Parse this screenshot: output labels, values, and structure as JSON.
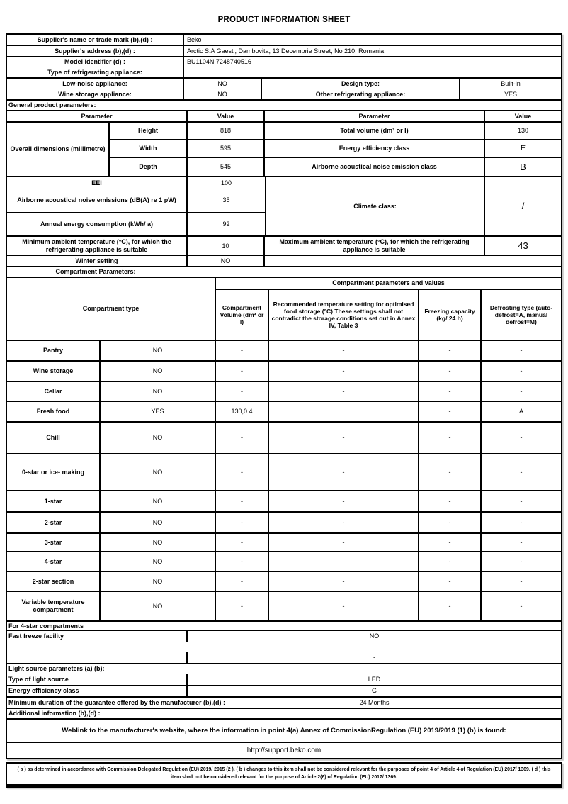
{
  "title": "PRODUCT INFORMATION SHEET",
  "supplier": {
    "name_label": "Supplier's name or trade mark (b),(d) :",
    "name_value": "Beko",
    "address_label": "Supplier's address (b),(d) :",
    "address_value": "Arctic S.A Gaesti, Dambovita, 13 Decembrie Street, No 210, Romania",
    "model_label": "Model identifier (d) :",
    "model_value": "BU1104N 7248740516",
    "type_label": "Type of refrigerating appliance:",
    "type_value": ""
  },
  "flags": {
    "low_noise_label": "Low-noise appliance:",
    "low_noise_value": "NO",
    "design_type_label": "Design type:",
    "design_type_value": "Built-in",
    "wine_storage_label": "Wine storage appliance:",
    "wine_storage_value": "NO",
    "other_label": "Other refrigerating appliance:",
    "other_value": "YES"
  },
  "general": {
    "section_label": "General product parameters:",
    "header": {
      "param": "Parameter",
      "value": "Value"
    },
    "dimensions": {
      "label": "Overall dimensions (millimetre)",
      "rows": [
        {
          "name": "Height",
          "value": "818"
        },
        {
          "name": "Width",
          "value": "595"
        },
        {
          "name": "Depth",
          "value": "545"
        }
      ]
    },
    "right_params": [
      {
        "label": "Total volume (dm³ or l)",
        "value": "130"
      },
      {
        "label": "Energy efficiency class",
        "value": "E"
      },
      {
        "label": "Airborne acoustical noise emission class",
        "value": "B"
      }
    ],
    "eei": {
      "label": "EEI",
      "value": "100"
    },
    "noise": {
      "label": "Airborne acoustical noise emissions (dB(A) re 1 pW)",
      "value": "35"
    },
    "energy": {
      "label": "Annual energy consumption (kWh/ a)",
      "value": "92"
    },
    "climate": {
      "label": "Climate class:",
      "value": "/"
    },
    "min_temp": {
      "label": "Minimum ambient temperature (°C), for which the refrigerating appliance is suitable",
      "value": "10"
    },
    "max_temp": {
      "label": "Maximum ambient temperature (°C), for which the refrigerating appliance is suitable",
      "value": "43"
    },
    "winter": {
      "label": "Winter setting",
      "value": "NO"
    }
  },
  "compartments": {
    "section_label": "Compartment Parameters:",
    "group_header": "Compartment parameters and values",
    "type_header": "Compartment type",
    "col_headers": [
      "Compartment Volume (dm³ or l)",
      "Recommended temperature setting for optimised food storage (°C) These settings shall not contradict the storage conditions set out in Annex IV, Table 3",
      "Freezing capacity (kg/ 24 h)",
      "Defrosting type (auto-defrost=A, manual defrost=M)"
    ],
    "rows": [
      {
        "type": "Pantry",
        "present": "NO",
        "volume": "-",
        "temp": "-",
        "freezing": "-",
        "defrost": "-"
      },
      {
        "type": "Wine storage",
        "present": "NO",
        "volume": "-",
        "temp": "-",
        "freezing": "-",
        "defrost": "-"
      },
      {
        "type": "Cellar",
        "present": "NO",
        "volume": "-",
        "temp": "-",
        "freezing": "-",
        "defrost": "-"
      },
      {
        "type": "Fresh food",
        "present": "YES",
        "volume": "130,0 4",
        "temp": "",
        "freezing": "-",
        "defrost": "A"
      },
      {
        "type": "Chill",
        "present": "NO",
        "volume": "-",
        "temp": "-",
        "freezing": "-",
        "defrost": "-"
      },
      {
        "type": "0-star or ice- making",
        "present": "NO",
        "volume": "-",
        "temp": "-",
        "freezing": "-",
        "defrost": "-"
      },
      {
        "type": "1-star",
        "present": "NO",
        "volume": "-",
        "temp": "-",
        "freezing": "-",
        "defrost": "-"
      },
      {
        "type": "2-star",
        "present": "NO",
        "volume": "-",
        "temp": "-",
        "freezing": "-",
        "defrost": "-"
      },
      {
        "type": "3-star",
        "present": "NO",
        "volume": "-",
        "temp": "-",
        "freezing": "-",
        "defrost": "-"
      },
      {
        "type": "4-star",
        "present": "NO",
        "volume": "-",
        "temp": "",
        "freezing": "-",
        "defrost": "-"
      },
      {
        "type": "2-star section",
        "present": "NO",
        "volume": "-",
        "temp": "-",
        "freezing": "-",
        "defrost": "-"
      },
      {
        "type": "Variable temperature compartment",
        "present": "NO",
        "volume": "-",
        "temp": "-",
        "freezing": "-",
        "defrost": "-"
      }
    ]
  },
  "four_star": {
    "section_label": "For 4-star compartments",
    "fast_freeze_label": "Fast freeze facility",
    "fast_freeze_value": "NO",
    "extra_value": "-"
  },
  "light": {
    "section_label": "Light source parameters (a) (b):",
    "type_label": "Type of light source",
    "type_value": "LED",
    "class_label": "Energy efficiency class",
    "class_value": "G"
  },
  "guarantee": {
    "label": "Minimum duration of the guarantee offered by the manufacturer (b),(d) :",
    "value": "24 Months"
  },
  "additional_label": "Additional information (b),(d) :",
  "weblink": {
    "text": "Weblink to the manufacturer's website, where the information in point 4(a) Annex of CommissionRegulation (EU) 2019/2019 (1) (b) is found:",
    "url": "http://support.beko.com"
  },
  "footnote": "( a ) as determined in accordance with Commission Delegated Regulation (EU) 2019/ 2015 (2 ). ( b ) changes to this item shall not be considered relevant for the purposes of point 4 of Article 4 of Regulation (EU) 2017/ 1369. ( d ) this item shall not be considered relevant for the purpose of Article 2(6) of Regulation (EU) 2017/ 1369."
}
